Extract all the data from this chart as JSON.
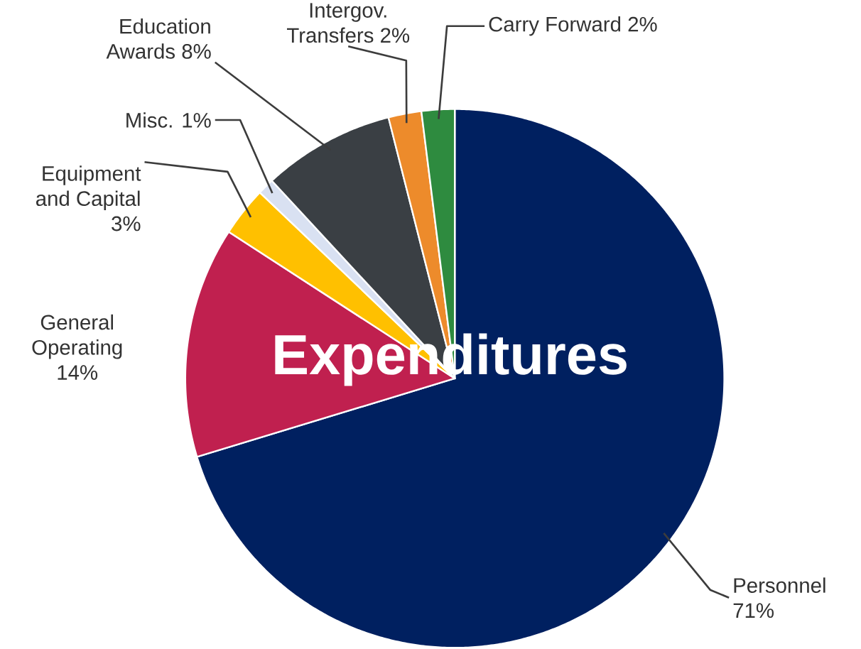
{
  "chart_data": {
    "type": "pie",
    "title": "Expenditures",
    "categories": [
      "Personnel",
      "General Operating",
      "Equipment and Capital",
      "Misc.",
      "Education Awards",
      "Intergov. Transfers",
      "Carry Forward"
    ],
    "values": [
      71,
      14,
      3,
      1,
      8,
      2,
      2
    ],
    "value_labels": [
      "71%",
      "14%",
      "3%",
      "1%",
      "8%",
      "2%",
      "2%"
    ],
    "colors": [
      "#002060",
      "#c0204f",
      "#ffc000",
      "#d9e1f2",
      "#3a3f44",
      "#ed8b2b",
      "#2e8b3f"
    ]
  }
}
